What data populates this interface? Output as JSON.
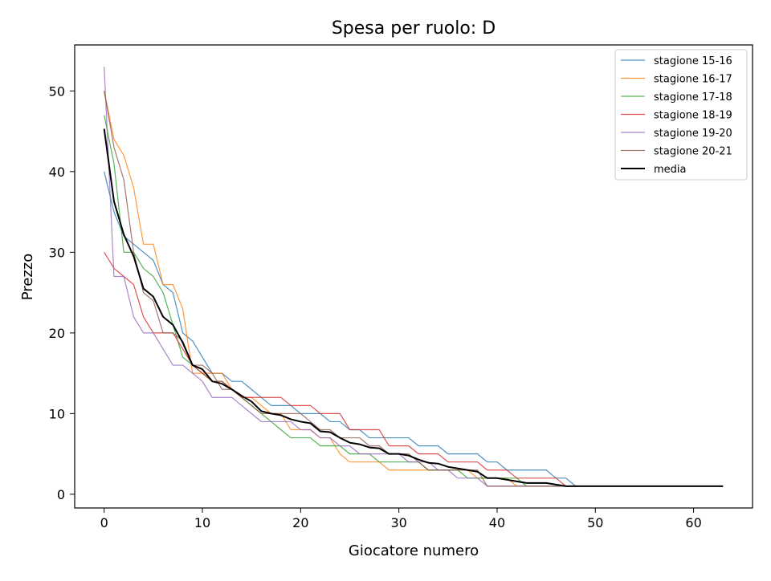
{
  "chart_data": {
    "type": "line",
    "title": "Spesa per ruolo: D",
    "xlabel": "Giocatore numero",
    "ylabel": "Prezzo",
    "xlim": [
      -3,
      66
    ],
    "ylim": [
      -1.7,
      55.7
    ],
    "xticks": [
      0,
      10,
      20,
      30,
      40,
      50,
      60
    ],
    "yticks": [
      0,
      10,
      20,
      30,
      40,
      50
    ],
    "grid": false,
    "legend_position": "top-right",
    "series": [
      {
        "name": "stagione 15-16",
        "color": "#1f77b4",
        "width": 1.2,
        "opacity": 0.8,
        "x": [
          0,
          1,
          2,
          3,
          4,
          5,
          6,
          7,
          8,
          9,
          10,
          11,
          12,
          13,
          14,
          15,
          16,
          17,
          18,
          19,
          20,
          21,
          22,
          23,
          24,
          25,
          26,
          27,
          28,
          29,
          30,
          31,
          32,
          33,
          34,
          35,
          36,
          37,
          38,
          39,
          40,
          41,
          42,
          43,
          44,
          45,
          46,
          47,
          48
        ],
        "y": [
          40,
          35,
          32,
          31,
          30,
          29,
          26,
          25,
          20,
          19,
          17,
          15,
          15,
          14,
          14,
          13,
          12,
          11,
          11,
          11,
          10,
          10,
          10,
          9,
          9,
          8,
          8,
          7,
          7,
          7,
          7,
          7,
          6,
          6,
          6,
          5,
          5,
          5,
          5,
          4,
          4,
          3,
          3,
          3,
          3,
          3,
          2,
          2,
          1
        ]
      },
      {
        "name": "stagione 16-17",
        "color": "#ff7f0e",
        "width": 1.2,
        "opacity": 0.8,
        "x": [
          0,
          1,
          2,
          3,
          4,
          5,
          6,
          7,
          8,
          9,
          10,
          11,
          12,
          13,
          14,
          15,
          16,
          17,
          18,
          19,
          20,
          21,
          22,
          23,
          24,
          25,
          26,
          27,
          28,
          29,
          30,
          31,
          32,
          33,
          34,
          35,
          36,
          37,
          38,
          39,
          40,
          41,
          42,
          43,
          44,
          45,
          46,
          47,
          48
        ],
        "y": [
          50,
          44,
          42,
          38,
          31,
          31,
          26,
          26,
          23,
          15,
          15,
          15,
          15,
          13,
          12,
          12,
          11,
          10,
          10,
          8,
          8,
          8,
          7,
          7,
          5,
          4,
          4,
          4,
          4,
          3,
          3,
          3,
          3,
          3,
          3,
          3,
          3,
          3,
          2,
          2,
          2,
          2,
          1,
          1,
          1,
          1,
          1,
          1,
          1
        ]
      },
      {
        "name": "stagione 17-18",
        "color": "#2ca02c",
        "width": 1.2,
        "opacity": 0.8,
        "x": [
          0,
          1,
          2,
          3,
          4,
          5,
          6,
          7,
          8,
          9,
          10,
          11,
          12,
          13,
          14,
          15,
          16,
          17,
          18,
          19,
          20,
          21,
          22,
          23,
          24,
          25,
          26,
          27,
          28,
          29,
          30,
          31,
          32,
          33,
          34,
          35,
          36,
          37,
          38,
          39,
          40,
          41,
          42,
          43,
          44,
          45,
          46,
          47,
          48
        ],
        "y": [
          47,
          41,
          30,
          30,
          28,
          27,
          25,
          21,
          17,
          16,
          15,
          14,
          14,
          13,
          12,
          11,
          10,
          9,
          8,
          7,
          7,
          7,
          6,
          6,
          6,
          5,
          5,
          5,
          4,
          4,
          4,
          4,
          4,
          3,
          3,
          3,
          3,
          2,
          2,
          2,
          2,
          2,
          2,
          1,
          1,
          1,
          1,
          1,
          1
        ]
      },
      {
        "name": "stagione 18-19",
        "color": "#d62728",
        "width": 1.2,
        "opacity": 0.8,
        "x": [
          0,
          1,
          2,
          3,
          4,
          5,
          6,
          7,
          8,
          9,
          10,
          11,
          12,
          13,
          14,
          15,
          16,
          17,
          18,
          19,
          20,
          21,
          22,
          23,
          24,
          25,
          26,
          27,
          28,
          29,
          30,
          31,
          32,
          33,
          34,
          35,
          36,
          37,
          38,
          39,
          40,
          41,
          42,
          43,
          44,
          45,
          46,
          47,
          48
        ],
        "y": [
          30,
          28,
          27,
          26,
          22,
          20,
          20,
          20,
          18,
          16,
          15,
          14,
          14,
          13,
          12,
          12,
          12,
          12,
          12,
          11,
          11,
          11,
          10,
          10,
          10,
          8,
          8,
          8,
          8,
          6,
          6,
          6,
          5,
          5,
          5,
          4,
          4,
          4,
          4,
          3,
          3,
          3,
          2,
          2,
          2,
          2,
          2,
          1,
          1
        ]
      },
      {
        "name": "stagione 19-20",
        "color": "#9467bd",
        "width": 1.2,
        "opacity": 0.8,
        "x": [
          0,
          1,
          2,
          3,
          4,
          5,
          6,
          7,
          8,
          9,
          10,
          11,
          12,
          13,
          14,
          15,
          16,
          17,
          18,
          19,
          20,
          21,
          22,
          23,
          24,
          25,
          26,
          27,
          28,
          29,
          30,
          31,
          32,
          33,
          34,
          35,
          36,
          37,
          38,
          39,
          40,
          41,
          42,
          43,
          44,
          45,
          46,
          47,
          48
        ],
        "y": [
          53,
          27,
          27,
          22,
          20,
          20,
          18,
          16,
          16,
          15,
          14,
          12,
          12,
          12,
          11,
          10,
          9,
          9,
          9,
          9,
          8,
          8,
          7,
          7,
          6,
          6,
          5,
          5,
          5,
          5,
          5,
          4,
          4,
          4,
          3,
          3,
          2,
          2,
          2,
          1,
          1,
          1,
          1,
          1,
          1,
          1,
          1,
          1,
          1
        ]
      },
      {
        "name": "stagione 20-21",
        "color": "#8c564b",
        "width": 1.2,
        "opacity": 0.8,
        "x": [
          0,
          1,
          2,
          3,
          4,
          5,
          6,
          7,
          8,
          9,
          10,
          11,
          12,
          13,
          14,
          15,
          16,
          17,
          18,
          19,
          20,
          21,
          22,
          23,
          24,
          25,
          26,
          27,
          28,
          29,
          30,
          31,
          32,
          33,
          34,
          35,
          36,
          37,
          38,
          39,
          40,
          41,
          42,
          43,
          44,
          45,
          46,
          47,
          48
        ],
        "y": [
          50,
          43,
          39,
          30,
          25,
          24,
          20,
          20,
          19,
          16,
          16,
          15,
          13,
          13,
          12,
          11,
          10,
          10,
          10,
          10,
          10,
          9,
          8,
          8,
          7,
          7,
          7,
          6,
          6,
          5,
          5,
          5,
          4,
          3,
          3,
          3,
          3,
          3,
          3,
          1,
          1,
          1,
          1,
          1,
          1,
          1,
          1,
          1,
          1
        ]
      },
      {
        "name": "media",
        "color": "#000000",
        "width": 2.0,
        "opacity": 1.0,
        "x": [
          0,
          1,
          2,
          3,
          4,
          5,
          6,
          7,
          8,
          9,
          10,
          11,
          12,
          13,
          14,
          15,
          16,
          17,
          18,
          19,
          20,
          21,
          22,
          23,
          24,
          25,
          26,
          27,
          28,
          29,
          30,
          31,
          32,
          33,
          34,
          35,
          36,
          37,
          38,
          39,
          40,
          41,
          42,
          43,
          44,
          45,
          46,
          47,
          48,
          49,
          50,
          51,
          52,
          53,
          54,
          55,
          56,
          57,
          58,
          59,
          60,
          61,
          62,
          63
        ],
        "y": [
          45.3,
          36.3,
          32.2,
          29.5,
          25.5,
          24.5,
          22.0,
          21.0,
          18.8,
          16.0,
          15.5,
          14.0,
          13.7,
          13.0,
          12.2,
          11.5,
          10.3,
          10.0,
          9.8,
          9.3,
          9.0,
          8.8,
          7.8,
          7.7,
          7.0,
          6.4,
          6.2,
          5.8,
          5.7,
          5.0,
          5.0,
          4.8,
          4.3,
          3.9,
          3.8,
          3.4,
          3.2,
          3.0,
          2.8,
          2.0,
          2.0,
          1.8,
          1.6,
          1.4,
          1.4,
          1.4,
          1.2,
          1.0,
          1.0,
          1.0,
          1.0,
          1.0,
          1.0,
          1.0,
          1.0,
          1.0,
          1.0,
          1.0,
          1.0,
          1.0,
          1.0,
          1.0,
          1.0,
          1.0
        ]
      }
    ]
  }
}
